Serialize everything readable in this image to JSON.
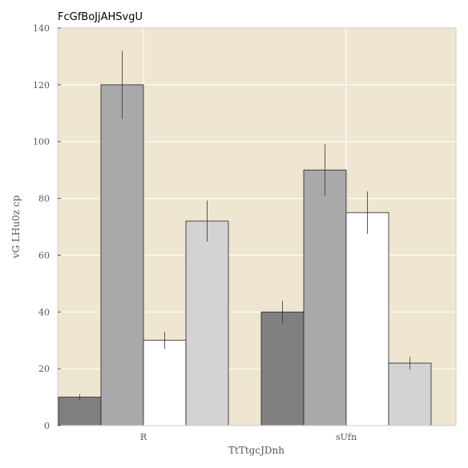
{
  "chart_data": {
    "type": "bar",
    "title": "FcGfBoJjAHSvgU",
    "xlabel": "TtTtgcJDnh",
    "ylabel": "vG LHu0z cp",
    "categories": [
      "R",
      "sUfn"
    ],
    "ylim": [
      0,
      140
    ],
    "yticks": [
      0,
      20,
      40,
      60,
      80,
      100,
      120,
      140
    ],
    "grid": true,
    "background_color": "#efe6d2",
    "series": [
      {
        "color": "#808080",
        "values": [
          10,
          40
        ],
        "errors": [
          1,
          4
        ]
      },
      {
        "color": "#a9a9a9",
        "values": [
          120,
          90
        ],
        "errors": [
          12,
          9
        ]
      },
      {
        "color": "#ffffff",
        "values": [
          30,
          75
        ],
        "errors": [
          3,
          7.5
        ]
      },
      {
        "color": "#d3d3d3",
        "values": [
          72,
          22
        ],
        "errors": [
          7.2,
          2.2
        ]
      }
    ]
  }
}
